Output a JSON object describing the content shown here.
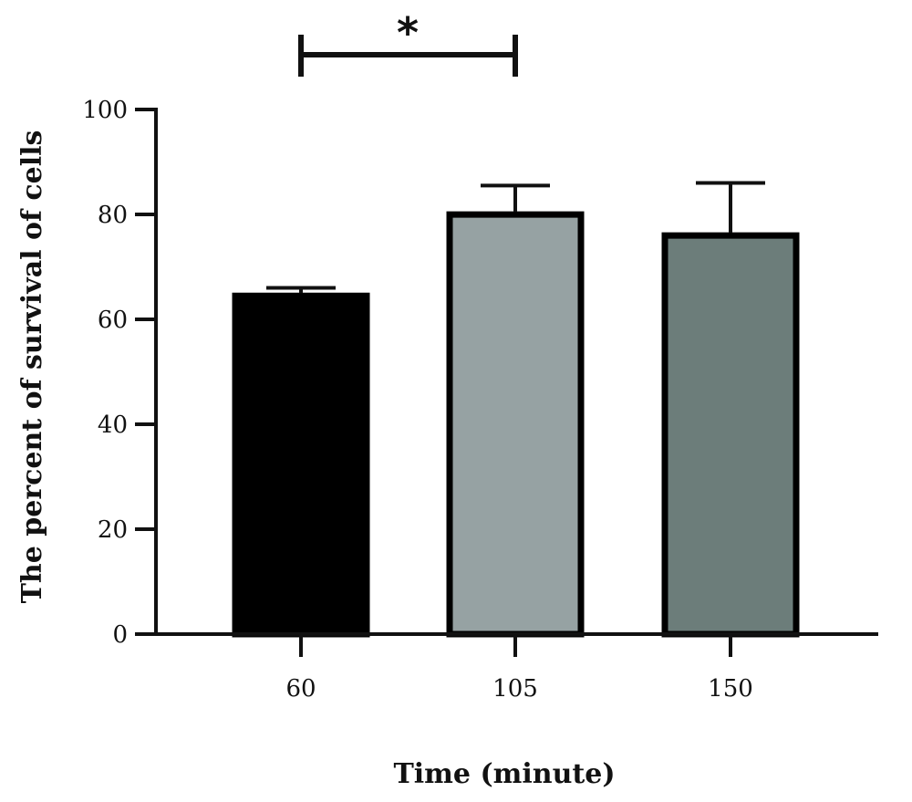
{
  "chart_data": {
    "type": "bar",
    "title": "",
    "xlabel": "Time (minute)",
    "ylabel": "The percent of survival of cells",
    "categories": [
      "60",
      "105",
      "150"
    ],
    "values": [
      65,
      80.5,
      76.5
    ],
    "error_upper": [
      66,
      85.5,
      86
    ],
    "colors": [
      "#000000",
      "#96a2a3",
      "#6c7d7a"
    ],
    "ylim": [
      0,
      100
    ],
    "yticks": [
      0,
      20,
      40,
      60,
      80,
      100
    ],
    "grid": false,
    "legend": "none",
    "annotations": [
      {
        "text": "*",
        "from_category": "60",
        "to_category": "105"
      }
    ]
  }
}
